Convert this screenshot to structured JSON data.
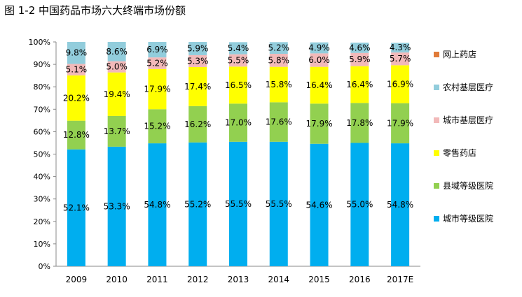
{
  "figure_title": "图 1-2  中国药品市场六大终端市场份额",
  "chart_data": {
    "type": "bar",
    "stacked": true,
    "percent": true,
    "categories": [
      "2009",
      "2010",
      "2011",
      "2012",
      "2013",
      "2014",
      "2015",
      "2016",
      "2017E"
    ],
    "series": [
      {
        "name": "城市等级医院",
        "color": "#00AEEF",
        "values": [
          52.1,
          53.3,
          54.8,
          55.2,
          55.5,
          55.5,
          54.6,
          55.0,
          54.8
        ],
        "labels": [
          "52.1%",
          "53.3%",
          "54.8%",
          "55.2%",
          "55.5%",
          "55.5%",
          "54.6%",
          "55.0%",
          "54.8%"
        ]
      },
      {
        "name": "县域等级医院",
        "color": "#92D050",
        "values": [
          12.8,
          13.7,
          15.2,
          16.2,
          17.0,
          17.6,
          17.9,
          17.8,
          17.9
        ],
        "labels": [
          "12.8%",
          "13.7%",
          "15.2%",
          "16.2%",
          "17.0%",
          "17.6%",
          "17.9%",
          "17.8%",
          "17.9%"
        ]
      },
      {
        "name": "零售药店",
        "color": "#FFFF00",
        "values": [
          20.2,
          19.4,
          17.9,
          17.4,
          16.5,
          15.8,
          16.4,
          16.4,
          16.9
        ],
        "labels": [
          "20.2%",
          "19.4%",
          "17.9%",
          "17.4%",
          "16.5%",
          "15.8%",
          "16.4%",
          "16.4%",
          "16.9%"
        ]
      },
      {
        "name": "城市基层医疗",
        "color": "#F2B9B9",
        "values": [
          5.1,
          5.0,
          5.2,
          5.3,
          5.5,
          5.8,
          6.0,
          5.9,
          5.7
        ],
        "labels": [
          "5.1%",
          "5.0%",
          "5.2%",
          "5.3%",
          "5.5%",
          "5.8%",
          "6.0%",
          "5.9%",
          "5.7%"
        ]
      },
      {
        "name": "农村基层医疗",
        "color": "#92CDDC",
        "values": [
          9.8,
          8.6,
          6.9,
          5.9,
          5.4,
          5.2,
          4.9,
          4.6,
          4.3
        ],
        "labels": [
          "9.8%",
          "8.6%",
          "6.9%",
          "5.9%",
          "5.4%",
          "5.2%",
          "4.9%",
          "4.6%",
          "4.3%"
        ]
      },
      {
        "name": "网上药店",
        "color": "#E07B39",
        "values": [
          0,
          0,
          0,
          0,
          0,
          0,
          0,
          0,
          0
        ],
        "labels": []
      }
    ],
    "yticks": [
      "0%",
      "10%",
      "20%",
      "30%",
      "40%",
      "50%",
      "60%",
      "70%",
      "80%",
      "90%",
      "100%"
    ],
    "ylim": [
      0,
      100
    ],
    "grid": false,
    "legend_position": "right"
  }
}
